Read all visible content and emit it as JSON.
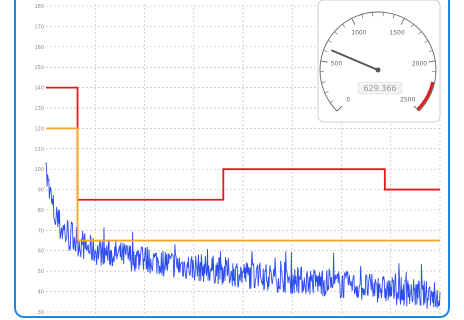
{
  "chart_data": {
    "type": "line",
    "title": "",
    "xlabel": "",
    "ylabel": "",
    "ylim": [
      28,
      181
    ],
    "xlim": [
      0,
      100
    ],
    "y_ticks": [
      30,
      40,
      50,
      60,
      70,
      80,
      90,
      100,
      110,
      120,
      130,
      140,
      150,
      160,
      170,
      180
    ],
    "grid": true,
    "series": [
      {
        "color": "#e01b1b",
        "step": true,
        "x": [
          0,
          8,
          8,
          45,
          45,
          86,
          86,
          100
        ],
        "y": [
          140,
          140,
          85,
          85,
          100,
          100,
          90,
          90
        ]
      },
      {
        "color": "#f5a623",
        "step": true,
        "x": [
          0,
          8,
          8,
          100
        ],
        "y": [
          120,
          120,
          65,
          65
        ]
      },
      {
        "color": "#2c4cf0",
        "noisy": true,
        "x": [
          0,
          0.5,
          1,
          2,
          3,
          5,
          8,
          12,
          18,
          25,
          33,
          42,
          52,
          62,
          72,
          82,
          90,
          95,
          100
        ],
        "y": [
          98,
          92,
          86,
          79,
          73,
          69,
          64,
          60,
          58,
          56,
          53,
          51,
          48,
          46,
          44,
          42,
          40,
          39,
          37
        ]
      }
    ],
    "gauge": {
      "min": 0,
      "max": 2500,
      "value": 629.366,
      "readout": "629.366",
      "ticks": [
        "0",
        "500",
        "1000",
        "1500",
        "2000",
        "2500"
      ],
      "red_band": [
        2200,
        2500
      ],
      "band_color": "#e01b1b",
      "needle_color": "#555555"
    }
  }
}
